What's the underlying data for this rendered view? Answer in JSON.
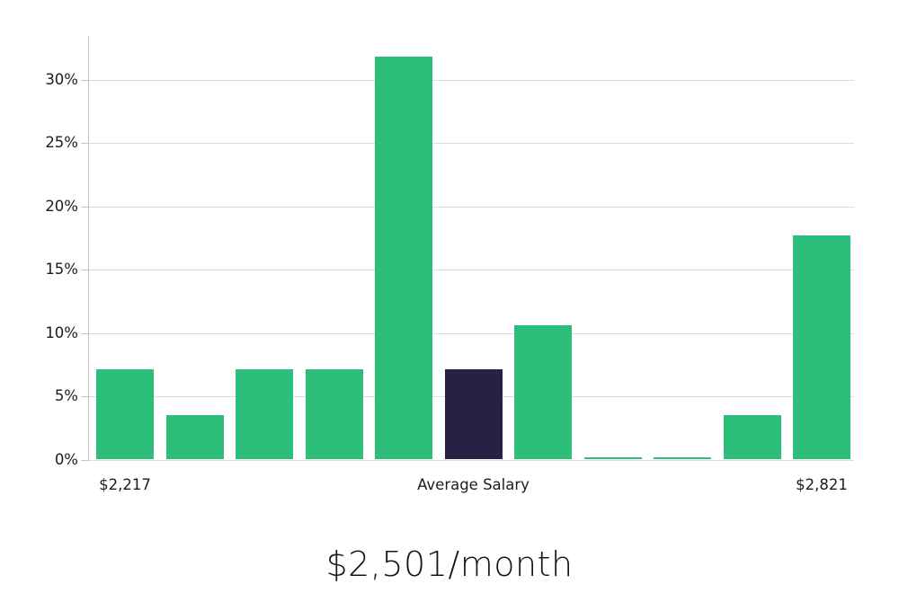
{
  "chart_data": {
    "type": "bar",
    "title": "$2,501/month",
    "xlabel": "",
    "ylabel": "",
    "grid": "horizontal",
    "legend": "none",
    "ylim": [
      0,
      33.4
    ],
    "ytick_values": [
      0,
      5,
      10,
      15,
      20,
      25,
      30
    ],
    "ytick_labels": [
      "0%",
      "5%",
      "10%",
      "15%",
      "20%",
      "25%",
      "30%"
    ],
    "values": [
      7.1,
      3.5,
      7.1,
      7.1,
      31.8,
      7.1,
      10.6,
      0.15,
      0.15,
      3.5,
      17.7
    ],
    "bar_color": "#2dbe7a",
    "highlight_color": "#262245",
    "highlight_index": 5,
    "highlight_meaning": "Average Salary",
    "x_tick_labels": [
      {
        "label": "$2,217",
        "bar_index": 0
      },
      {
        "label": "Average Salary",
        "bar_index": 5
      },
      {
        "label": "$2,821",
        "bar_index": 10
      }
    ],
    "colors": {
      "gridline": "#dcdcdc",
      "axis": "#c2c2c2",
      "label_text": "#1c1c1c"
    }
  }
}
